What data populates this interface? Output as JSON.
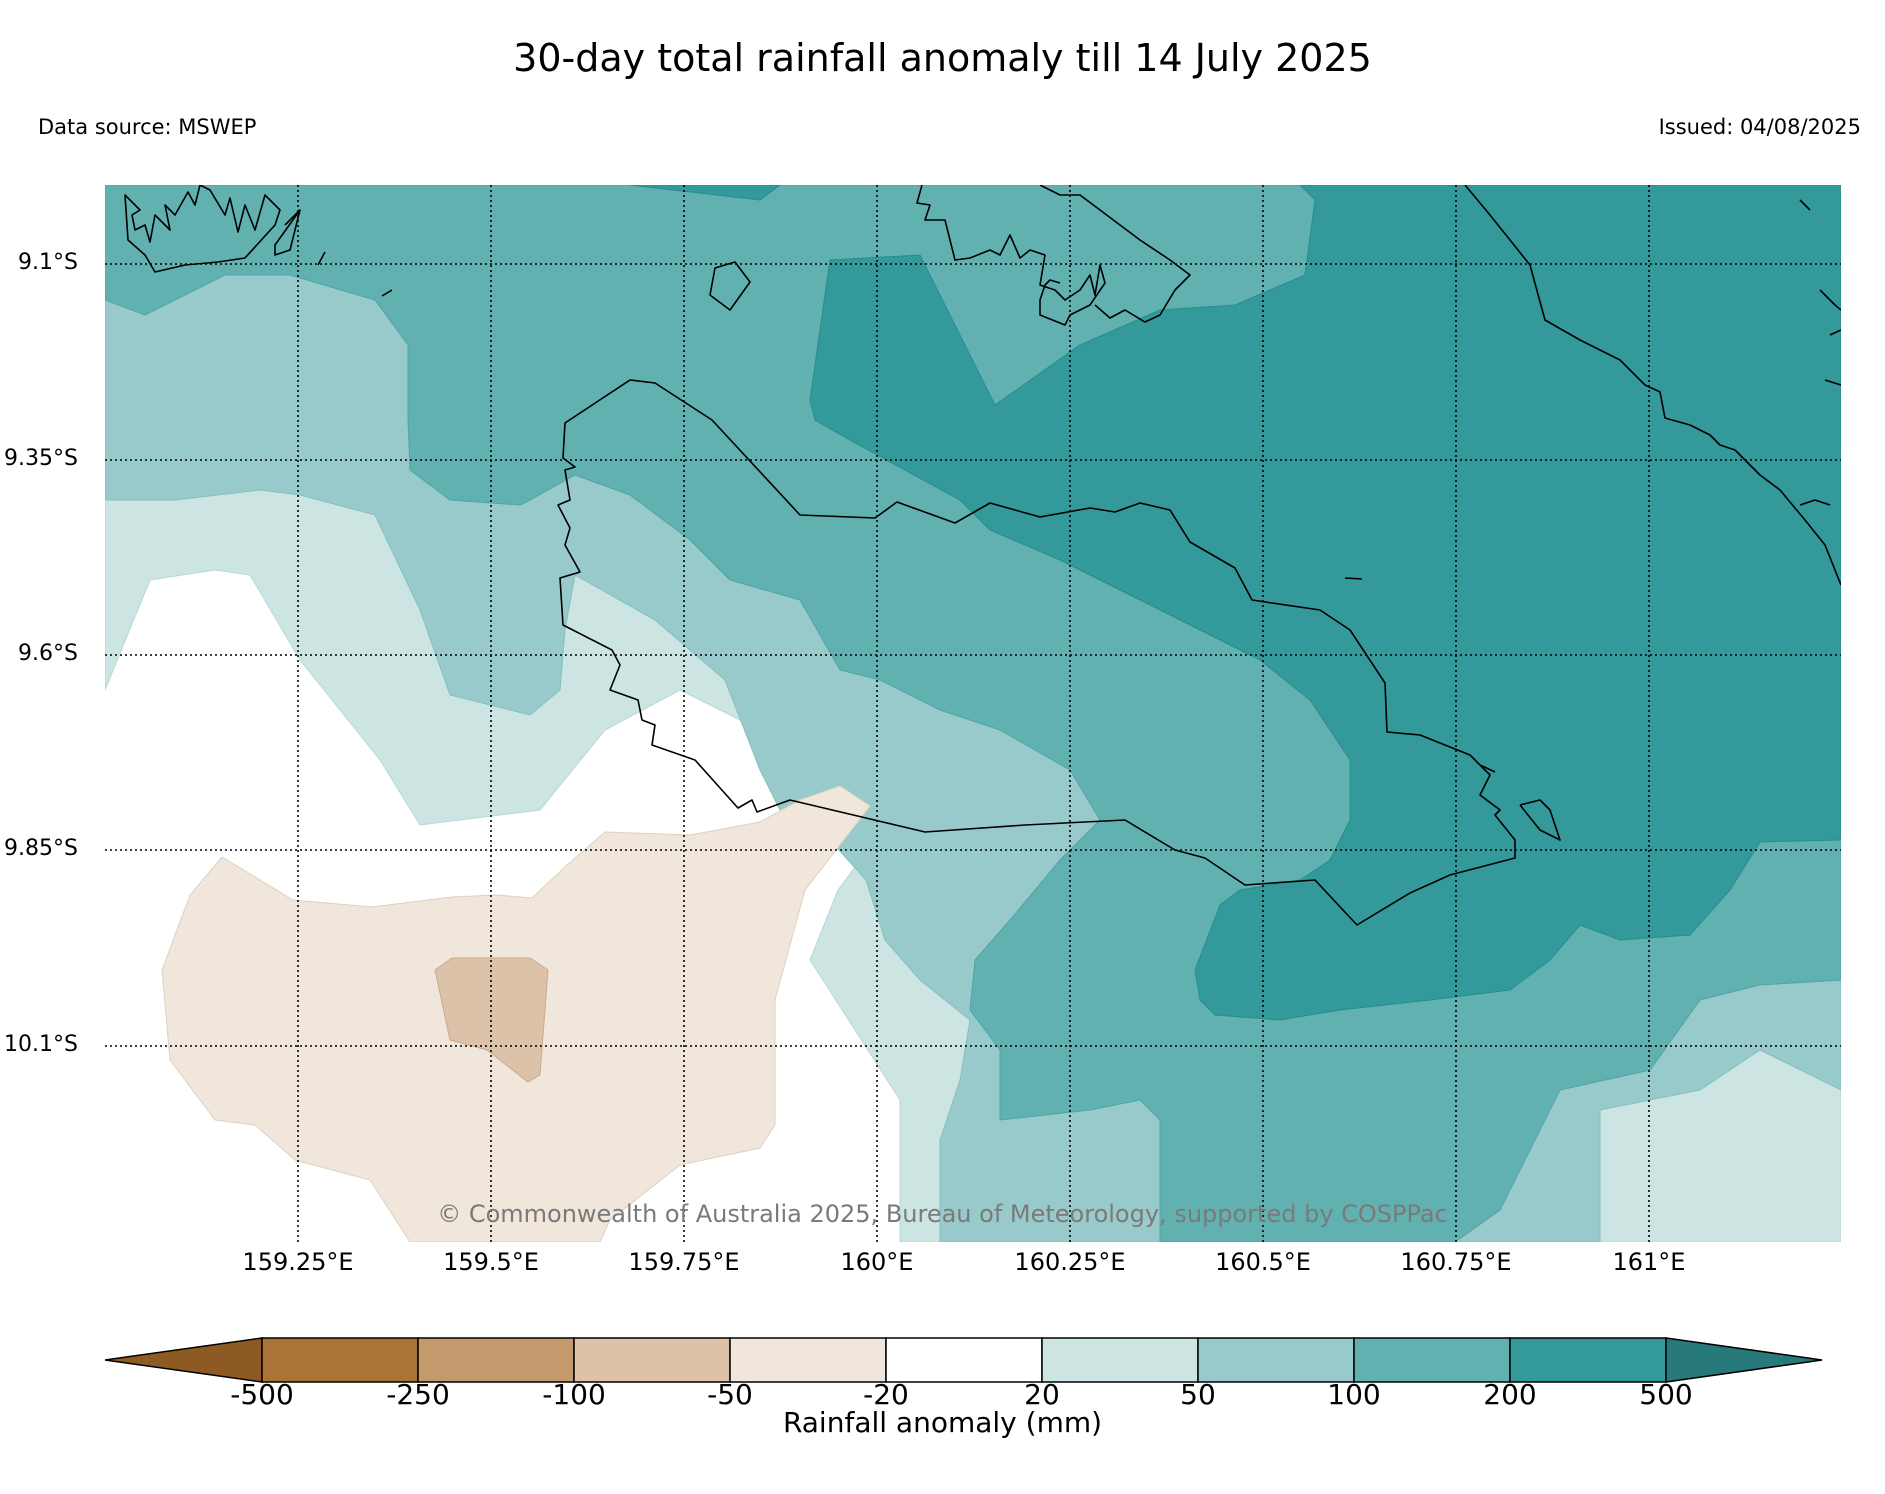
{
  "header": {
    "title": "30-day total rainfall anomaly till 14 July 2025",
    "data_source": "Data source: MSWEP",
    "issued": "Issued: 04/08/2025"
  },
  "map": {
    "lat_labels": [
      "9.1°S",
      "9.35°S",
      "9.6°S",
      "9.85°S",
      "10.1°S"
    ],
    "lon_labels": [
      "159.25°E",
      "159.5°E",
      "159.75°E",
      "160°E",
      "160.25°E",
      "160.5°E",
      "160.75°E",
      "161°E"
    ],
    "copyright": "© Commonwealth of Australia 2025, Bureau of Meteorology, supported by COSPPac"
  },
  "colorbar": {
    "title": "Rainfall anomaly (mm)",
    "tick_labels": [
      "-500",
      "-250",
      "-100",
      "-50",
      "-20",
      "20",
      "50",
      "100",
      "200",
      "500"
    ],
    "colors": [
      "#8c5a22",
      "#ab7437",
      "#c49a6c",
      "#dbc2a8",
      "#f1e6dc",
      "#ffffff",
      "#cce5e3",
      "#99cacb",
      "#62b1b1",
      "#33999a",
      "#287a7a"
    ]
  }
}
